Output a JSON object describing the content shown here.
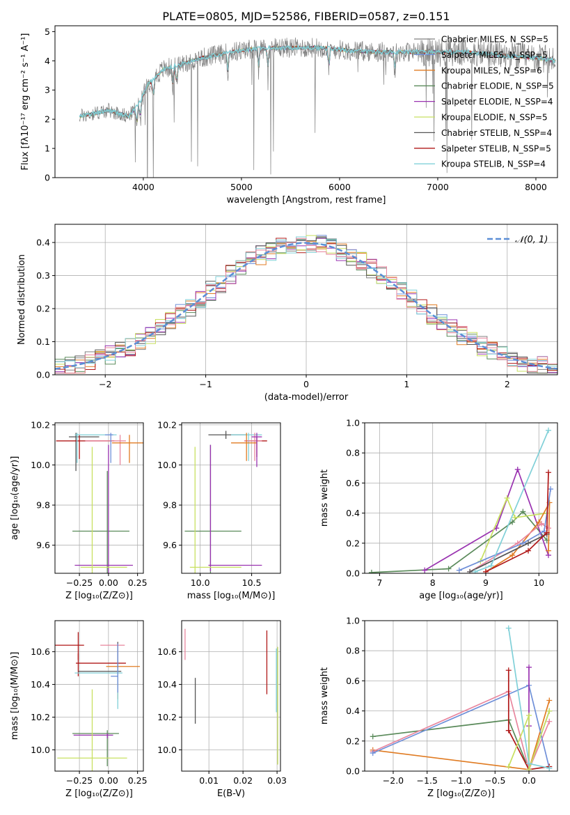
{
  "figure": {
    "title": "PLATE=0805, MJD=52586, FIBERID=0587, z=0.151"
  },
  "chart_data": [
    {
      "id": "spectrum",
      "type": "line",
      "xlabel": "wavelength [Angstrom, rest frame]",
      "ylabel": "Flux [fλ10⁻¹⁷ erg cm⁻² s⁻¹ A⁻¹]",
      "xlim": [
        3100,
        8220
      ],
      "ylim": [
        0,
        5.2
      ],
      "xticks": [
        4000,
        5000,
        6000,
        7000,
        8000
      ],
      "yticks": [
        0,
        1,
        2,
        3,
        4,
        5
      ],
      "grid": false,
      "legend_position": "top-right",
      "legend": [
        {
          "name": "Chabrier MILES, N_SSP=5",
          "color": "#808080"
        },
        {
          "name": "Salpeter MILES, N_SSP=5",
          "color": "#6f8fd8"
        },
        {
          "name": "Kroupa MILES, N_SSP=6",
          "color": "#e07b22"
        },
        {
          "name": "Chabrier ELODIE, N_SSP=5",
          "color": "#5a8a5a"
        },
        {
          "name": "Salpeter ELODIE, N_SSP=4",
          "color": "#9932b0"
        },
        {
          "name": "Kroupa ELODIE, N_SSP=5",
          "color": "#c8e060"
        },
        {
          "name": "Chabrier STELIB, N_SSP=4",
          "color": "#555555"
        },
        {
          "name": "Salpeter STELIB, N_SSP=5",
          "color": "#b01818"
        },
        {
          "name": "Kroupa STELIB, N_SSP=4",
          "color": "#80d0d8"
        }
      ],
      "continuum": [
        [
          3350,
          2.1
        ],
        [
          3500,
          2.2
        ],
        [
          3650,
          2.3
        ],
        [
          3850,
          2.1
        ],
        [
          3950,
          2.5
        ],
        [
          4050,
          3.2
        ],
        [
          4200,
          3.7
        ],
        [
          4400,
          3.9
        ],
        [
          4600,
          4.1
        ],
        [
          4900,
          4.3
        ],
        [
          5100,
          4.4
        ],
        [
          5400,
          4.45
        ],
        [
          5800,
          4.45
        ],
        [
          6100,
          4.35
        ],
        [
          6400,
          4.3
        ],
        [
          6700,
          4.3
        ],
        [
          7000,
          4.3
        ],
        [
          7300,
          4.3
        ],
        [
          7600,
          4.2
        ],
        [
          8000,
          4.1
        ],
        [
          8200,
          4.0
        ]
      ]
    },
    {
      "id": "residuals",
      "type": "histogram",
      "xlabel": "(data-model)/error",
      "ylabel": "Normed distribution",
      "xlim": [
        -2.5,
        2.5
      ],
      "ylim": [
        0,
        0.455
      ],
      "xticks": [
        -2,
        -1,
        0,
        1,
        2
      ],
      "yticks": [
        0.0,
        0.1,
        0.2,
        0.3,
        0.4
      ],
      "grid": true,
      "legend_position": "top-right",
      "legend": [
        {
          "name": "𝒩(0, 1)",
          "color": "#5b8ed6",
          "style": "dashed"
        }
      ],
      "bin_width": 0.1,
      "gaussian": {
        "mean": 0,
        "sigma": 1
      }
    },
    {
      "id": "age-vs-Z",
      "type": "errorbar",
      "xlabel": "Z [log₁₀(Z/Z⊙)]",
      "ylabel": "age  [log₁₀(age/yr)]",
      "xlim": [
        -0.46,
        0.3
      ],
      "ylim": [
        9.46,
        10.21
      ],
      "xticks": [
        -0.25,
        0.0,
        0.25
      ],
      "yticks": [
        9.6,
        9.8,
        10.0,
        10.2
      ],
      "grid": true,
      "points": [
        {
          "x": -0.28,
          "y": 10.14,
          "xerr": [
            0.06,
            0.2
          ],
          "yerr": [
            0.17,
            0.02
          ],
          "color": "#555555"
        },
        {
          "x": -0.25,
          "y": 10.12,
          "xerr": [
            0.2,
            0.3
          ],
          "yerr": [
            0.09,
            0.03
          ],
          "color": "#b01818"
        },
        {
          "x": -0.27,
          "y": 10.15,
          "xerr": [
            0.02,
            0.34
          ],
          "yerr": [
            0.14,
            0.01
          ],
          "color": "#80d0d8"
        },
        {
          "x": 0.1,
          "y": 10.12,
          "xerr": [
            0.3,
            0.05
          ],
          "yerr": [
            0.12,
            0.03
          ],
          "color": "#e8869e"
        },
        {
          "x": 0.18,
          "y": 10.11,
          "xerr": [
            0.15,
            0.16
          ],
          "yerr": [
            0.1,
            0.04
          ],
          "color": "#e07b22"
        },
        {
          "x": 0.02,
          "y": 10.15,
          "xerr": [
            0.05,
            0.02
          ],
          "yerr": [
            0.14,
            0.01
          ],
          "color": "#6f8fd8"
        },
        {
          "x": -0.01,
          "y": 9.67,
          "xerr": [
            0.3,
            0.19
          ],
          "yerr": [
            0.3,
            0.3
          ],
          "color": "#5a8a5a"
        },
        {
          "x": 0.0,
          "y": 9.5,
          "xerr": [
            0.29,
            0.21
          ],
          "yerr": [
            0.04,
            0.6
          ],
          "color": "#9932b0"
        },
        {
          "x": -0.14,
          "y": 9.49,
          "xerr": [
            0.1,
            0.3
          ],
          "yerr": [
            0.03,
            0.6
          ],
          "color": "#c8e060"
        }
      ]
    },
    {
      "id": "age-vs-mass",
      "type": "errorbar",
      "xlabel": "mass [log₁₀(M/M⊙)]",
      "ylabel": "",
      "xlim": [
        9.82,
        10.78
      ],
      "ylim": [
        9.46,
        10.21
      ],
      "xticks": [
        10.0,
        10.5
      ],
      "yticks": [
        9.6,
        9.8,
        10.0,
        10.2
      ],
      "grid": true,
      "points": [
        {
          "x": 10.25,
          "y": 10.15,
          "xerr": [
            0.17,
            0.2
          ],
          "yerr": [
            0.02,
            0.02
          ],
          "color": "#555555"
        },
        {
          "x": 10.55,
          "y": 10.12,
          "xerr": [
            0.12,
            0.1
          ],
          "yerr": [
            0.08,
            0.02
          ],
          "color": "#b01818"
        },
        {
          "x": 10.47,
          "y": 10.15,
          "xerr": [
            0.17,
            0.13
          ],
          "yerr": [
            0.13,
            0.01
          ],
          "color": "#80d0d8"
        },
        {
          "x": 10.53,
          "y": 10.12,
          "xerr": [
            0.1,
            0.07
          ],
          "yerr": [
            0.1,
            0.04
          ],
          "color": "#e8869e"
        },
        {
          "x": 10.45,
          "y": 10.11,
          "xerr": [
            0.15,
            0.1
          ],
          "yerr": [
            0.09,
            0.05
          ],
          "color": "#e07b22"
        },
        {
          "x": 10.55,
          "y": 10.14,
          "xerr": [
            0.05,
            0.05
          ],
          "yerr": [
            0.15,
            0.02
          ],
          "color": "#9932b0"
        },
        {
          "x": 10.1,
          "y": 9.67,
          "xerr": [
            0.25,
            0.3
          ],
          "yerr": [
            0.3,
            0.43
          ],
          "color": "#5a8a5a"
        },
        {
          "x": 10.1,
          "y": 9.5,
          "xerr": [
            0.02,
            0.5
          ],
          "yerr": [
            0.03,
            0.6
          ],
          "color": "#9932b0"
        },
        {
          "x": 9.95,
          "y": 9.49,
          "xerr": [
            0.05,
            0.45
          ],
          "yerr": [
            0.03,
            0.6
          ],
          "color": "#c8e060"
        }
      ]
    },
    {
      "id": "weight-vs-age",
      "type": "line",
      "xlabel": "age  [log₁₀(age/yr)]",
      "ylabel": "mass weight",
      "xlim": [
        6.72,
        10.35
      ],
      "ylim": [
        0,
        1.0
      ],
      "xticks": [
        7,
        8,
        9,
        10
      ],
      "yticks": [
        0.0,
        0.2,
        0.4,
        0.6,
        0.8,
        1.0
      ],
      "grid": true,
      "series": [
        {
          "color": "#5a8a5a",
          "points": [
            [
              6.85,
              0.005
            ],
            [
              8.3,
              0.03
            ],
            [
              9.5,
              0.34
            ],
            [
              9.7,
              0.41
            ],
            [
              10.15,
              0.22
            ]
          ]
        },
        {
          "color": "#9932b0",
          "points": [
            [
              7.85,
              0.02
            ],
            [
              9.2,
              0.3
            ],
            [
              9.6,
              0.69
            ],
            [
              10.18,
              0.12
            ]
          ]
        },
        {
          "color": "#c8e060",
          "points": [
            [
              8.9,
              0.08
            ],
            [
              9.4,
              0.5
            ],
            [
              9.55,
              0.37
            ],
            [
              10.15,
              0.4
            ]
          ]
        },
        {
          "color": "#e07b22",
          "points": [
            [
              9.0,
              0.01
            ],
            [
              9.5,
              0.12
            ],
            [
              10.0,
              0.34
            ],
            [
              10.2,
              0.47
            ],
            [
              10.18,
              0.15
            ]
          ]
        },
        {
          "color": "#e8869e",
          "points": [
            [
              8.7,
              0.01
            ],
            [
              9.6,
              0.2
            ],
            [
              10.05,
              0.33
            ],
            [
              10.18,
              0.3
            ]
          ]
        },
        {
          "color": "#6f8fd8",
          "points": [
            [
              8.5,
              0.02
            ],
            [
              9.7,
              0.2
            ],
            [
              10.1,
              0.28
            ],
            [
              10.22,
              0.56
            ]
          ]
        },
        {
          "color": "#555555",
          "points": [
            [
              8.7,
              0.01
            ],
            [
              9.8,
              0.2
            ],
            [
              10.15,
              0.26
            ]
          ]
        },
        {
          "color": "#b01818",
          "points": [
            [
              9.0,
              0.01
            ],
            [
              9.8,
              0.15
            ],
            [
              10.15,
              0.27
            ],
            [
              10.18,
              0.67
            ]
          ]
        },
        {
          "color": "#80d0d8",
          "points": [
            [
              8.8,
              0.01
            ],
            [
              9.1,
              0.05
            ],
            [
              10.18,
              0.95
            ]
          ]
        }
      ]
    },
    {
      "id": "mass-vs-Z",
      "type": "errorbar",
      "xlabel": "Z [log₁₀(Z/Z⊙)]",
      "ylabel": "mass [log₁₀(M/M⊙)]",
      "xlim": [
        -0.46,
        0.3
      ],
      "ylim": [
        9.87,
        10.79
      ],
      "xticks": [
        -0.25,
        0.0,
        0.25
      ],
      "yticks": [
        10.0,
        10.2,
        10.4,
        10.6
      ],
      "grid": true,
      "points": [
        {
          "x": -0.26,
          "y": 10.64,
          "xerr": [
            0.2,
            0.05
          ],
          "yerr": [
            0.09,
            0.08
          ],
          "color": "#b01818"
        },
        {
          "x": 0.08,
          "y": 10.64,
          "xerr": [
            0.15,
            0.06
          ],
          "yerr": [
            0.02,
            0.02
          ],
          "color": "#e8869e"
        },
        {
          "x": -0.26,
          "y": 10.53,
          "xerr": [
            0.02,
            0.41
          ],
          "yerr": [
            0.08,
            0.06
          ],
          "color": "#b01818"
        },
        {
          "x": 0.08,
          "y": 10.51,
          "xerr": [
            0.1,
            0.19
          ],
          "yerr": [
            0.2,
            0.02
          ],
          "color": "#e07b22"
        },
        {
          "x": 0.08,
          "y": 10.48,
          "xerr": [
            0.34,
            0.03
          ],
          "yerr": [
            0.03,
            0.18
          ],
          "color": "#555555"
        },
        {
          "x": 0.08,
          "y": 10.47,
          "xerr": [
            0.37,
            0.04
          ],
          "yerr": [
            0.22,
            0.03
          ],
          "color": "#80d0d8"
        },
        {
          "x": 0.08,
          "y": 10.45,
          "xerr": [
            0.06,
            0.0
          ],
          "yerr": [
            0.1,
            0.2
          ],
          "color": "#6f8fd8"
        },
        {
          "x": -0.01,
          "y": 10.1,
          "xerr": [
            0.3,
            0.1
          ],
          "yerr": [
            0.2,
            0.02
          ],
          "color": "#5a8a5a"
        },
        {
          "x": -0.01,
          "y": 10.09,
          "xerr": [
            0.29,
            0.05
          ],
          "yerr": [
            0.02,
            0.01
          ],
          "color": "#9932b0"
        },
        {
          "x": -0.14,
          "y": 9.95,
          "xerr": [
            0.3,
            0.3
          ],
          "yerr": [
            0.08,
            0.42
          ],
          "color": "#c8e060"
        }
      ]
    },
    {
      "id": "mass-vs-EBV",
      "type": "errorbar",
      "xlabel": "E(B-V)",
      "ylabel": "",
      "xlim": [
        0.002,
        0.031
      ],
      "ylim": [
        9.87,
        10.79
      ],
      "xticks": [
        0.01,
        0.02,
        0.03
      ],
      "yticks": [
        10.0,
        10.2,
        10.4,
        10.6
      ],
      "grid": true,
      "points": [
        {
          "x": 0.003,
          "y": 10.64,
          "xerr": [
            0,
            0
          ],
          "yerr": [
            0.09,
            0.1
          ],
          "color": "#e8869e"
        },
        {
          "x": 0.006,
          "y": 10.3,
          "xerr": [
            0,
            0
          ],
          "yerr": [
            0.14,
            0.14
          ],
          "color": "#555555"
        },
        {
          "x": 0.027,
          "y": 10.54,
          "xerr": [
            0,
            0
          ],
          "yerr": [
            0.2,
            0.19
          ],
          "color": "#b01818"
        },
        {
          "x": 0.0298,
          "y": 10.4,
          "xerr": [
            0,
            0
          ],
          "yerr": [
            0.17,
            0.22
          ],
          "color": "#80d0d8"
        },
        {
          "x": 0.0302,
          "y": 10.25,
          "xerr": [
            0,
            0
          ],
          "yerr": [
            0.34,
            0.38
          ],
          "color": "#c8e060"
        }
      ]
    },
    {
      "id": "weight-vs-Z",
      "type": "line",
      "xlabel": "Z [log₁₀(Z/Z⊙)]",
      "ylabel": "mass weight",
      "xlim": [
        -2.42,
        0.42
      ],
      "ylim": [
        0,
        1.0
      ],
      "xticks": [
        -2.0,
        -1.5,
        -1.0,
        -0.5,
        0.0
      ],
      "yticks": [
        0.0,
        0.2,
        0.4,
        0.6,
        0.8,
        1.0
      ],
      "grid": true,
      "series": [
        {
          "color": "#5a8a5a",
          "points": [
            [
              -2.3,
              0.23
            ],
            [
              -0.3,
              0.34
            ],
            [
              0,
              0.01
            ],
            [
              0.3,
              0.4
            ]
          ]
        },
        {
          "color": "#e07b22",
          "points": [
            [
              -2.3,
              0.14
            ],
            [
              0,
              0.01
            ],
            [
              0.3,
              0.47
            ]
          ]
        },
        {
          "color": "#e8869e",
          "points": [
            [
              -2.3,
              0.13
            ],
            [
              -0.3,
              0.53
            ],
            [
              0,
              0.01
            ],
            [
              0.3,
              0.33
            ]
          ]
        },
        {
          "color": "#6f8fd8",
          "points": [
            [
              -2.3,
              0.12
            ],
            [
              0,
              0.57
            ],
            [
              0.3,
              0.02
            ]
          ]
        },
        {
          "color": "#b01818",
          "points": [
            [
              -0.3,
              0.67
            ],
            [
              -0.3,
              0.27
            ],
            [
              0,
              0.01
            ],
            [
              0.3,
              0.03
            ]
          ]
        },
        {
          "color": "#9932b0",
          "points": [
            [
              0,
              0.69
            ],
            [
              0,
              0.3
            ],
            [
              0,
              0.01
            ]
          ]
        },
        {
          "color": "#c8e060",
          "points": [
            [
              -0.3,
              0.03
            ],
            [
              0,
              0.37
            ],
            [
              0,
              0.01
            ],
            [
              0.3,
              0.4
            ]
          ]
        },
        {
          "color": "#80d0d8",
          "points": [
            [
              -0.3,
              0.95
            ],
            [
              0,
              0.05
            ],
            [
              0.3,
              0.02
            ]
          ]
        }
      ]
    }
  ]
}
